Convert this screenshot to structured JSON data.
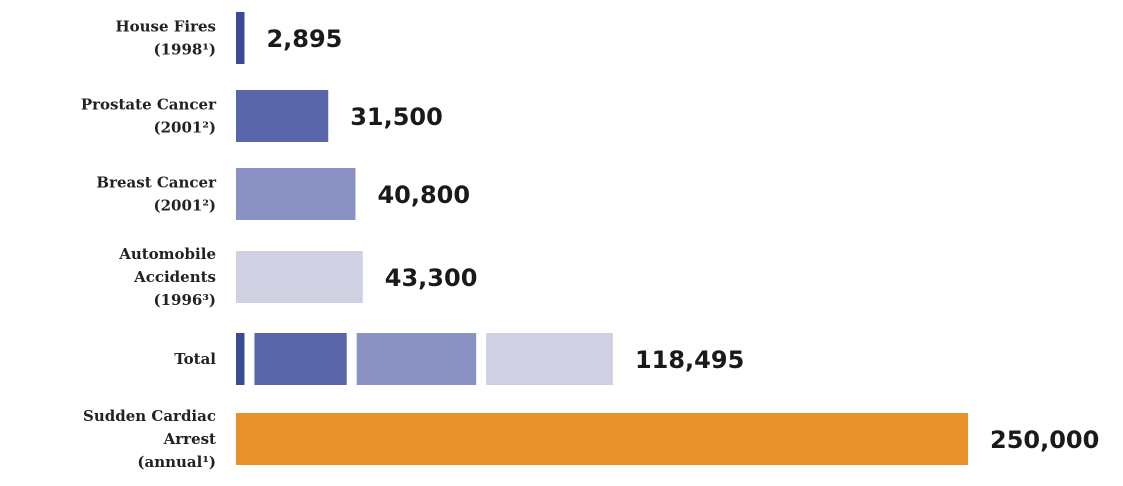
{
  "chart_data": {
    "type": "bar",
    "orientation": "horizontal",
    "title": "",
    "xlabel": "",
    "ylabel": "",
    "grid": false,
    "categories": [
      {
        "lines": [
          "House Fires",
          "(1998¹)"
        ],
        "value": 2895,
        "value_label": "2,895",
        "color": "#3a4a96"
      },
      {
        "lines": [
          "Prostate Cancer",
          "(2001²)"
        ],
        "value": 31500,
        "value_label": "31,500",
        "color": "#5865a8"
      },
      {
        "lines": [
          "Breast Cancer",
          "(2001²)"
        ],
        "value": 40800,
        "value_label": "40,800",
        "color": "#8b91c2"
      },
      {
        "lines": [
          "Automobile",
          "Accidents",
          "(1996³)"
        ],
        "value": 43300,
        "value_label": "43,300",
        "color": "#cfd0e2"
      },
      {
        "lines": [
          "Total"
        ],
        "value": 118495,
        "value_label": "118,495",
        "stacked_from": [
          0,
          1,
          2,
          3
        ]
      },
      {
        "lines": [
          "Sudden Cardiac",
          "Arrest",
          "(annual¹)"
        ],
        "value": 250000,
        "value_label": "250,000",
        "color": "#e8902a"
      }
    ]
  }
}
